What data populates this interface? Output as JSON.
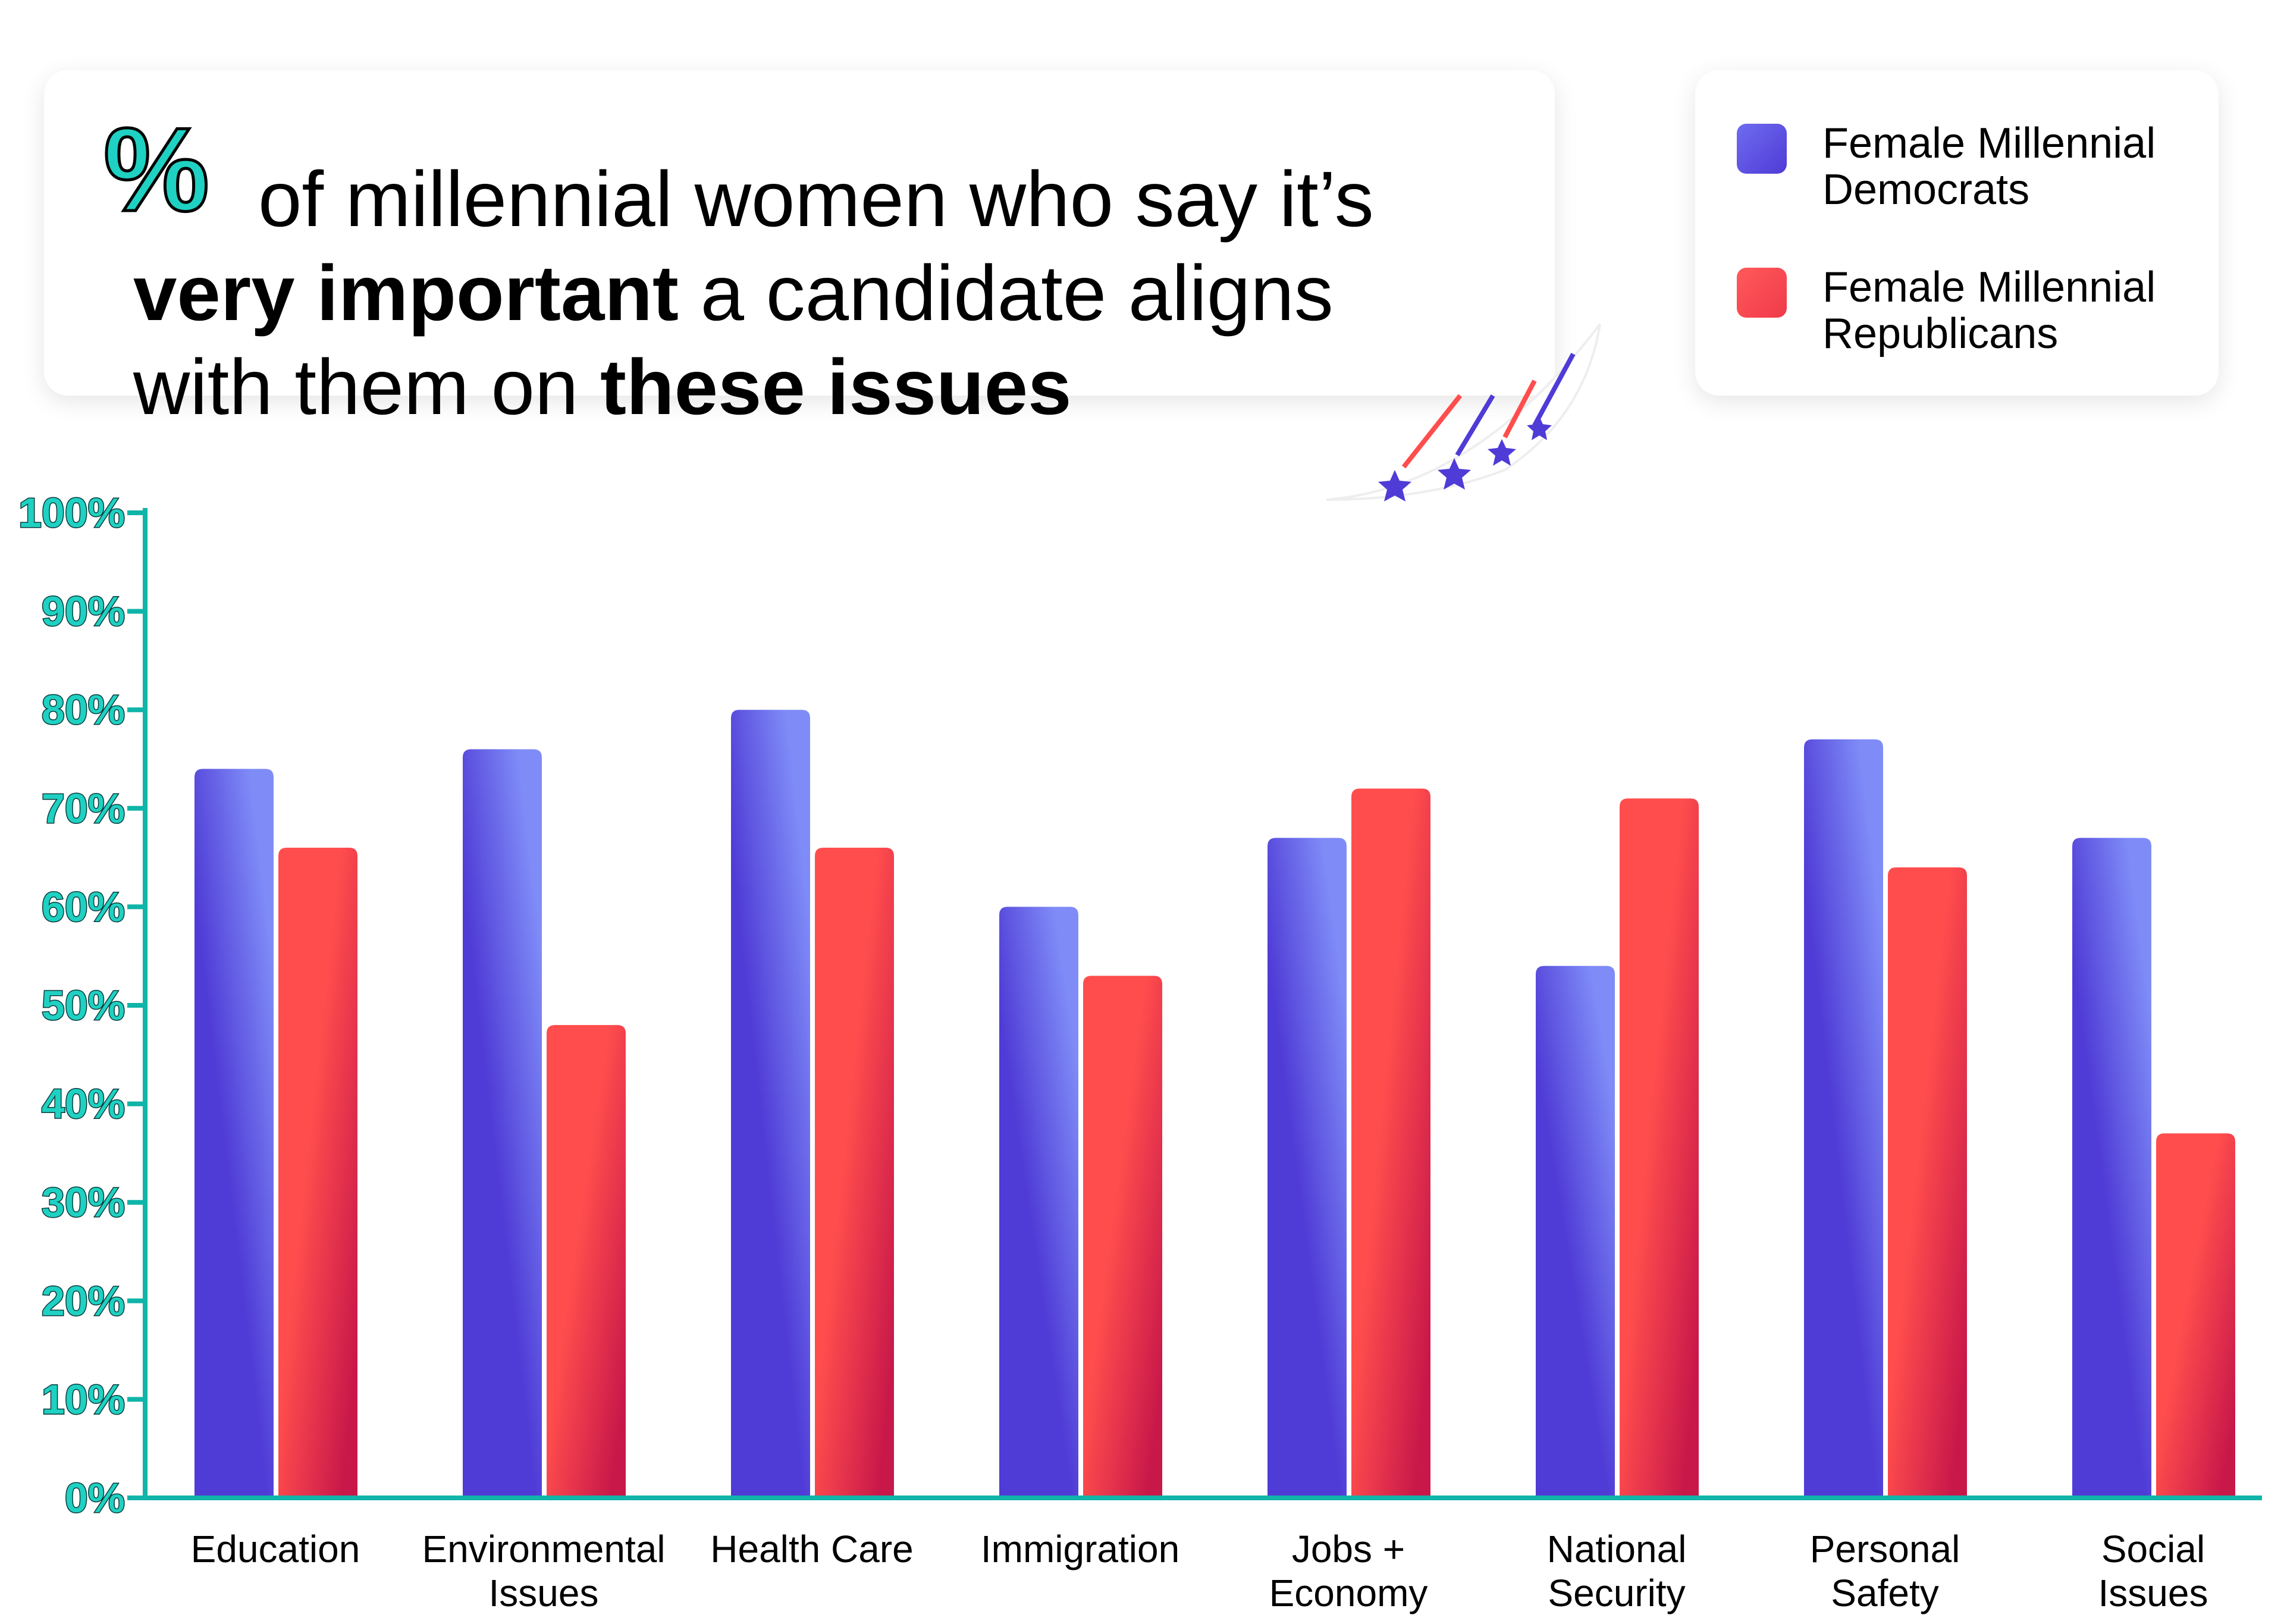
{
  "title": {
    "symbol": "%",
    "line1": "of millennial women who say it’s",
    "line2_bold": "very important",
    "line2_rest": " a candidate aligns",
    "line3_rest": "with them on ",
    "line3_bold": "these issues"
  },
  "legend": [
    {
      "label_line1": "Female Millennial",
      "label_line2": "Democrats",
      "color": "#4f3bd6"
    },
    {
      "label_line1": "Female Millennial",
      "label_line2": "Republicans",
      "color": "#ff4d4d"
    }
  ],
  "colors": {
    "axis": "#10b4a8",
    "tick_text": "#1fd1c2",
    "democrat_top": "#7f8cf7",
    "democrat": "#4f3bd6",
    "republican": "#ff4d4d",
    "republican_bottom": "#c8184a"
  },
  "chart_data": {
    "type": "bar",
    "title": "% of millennial women who say it’s very important a candidate aligns with them on these issues",
    "categories": [
      [
        "Education"
      ],
      [
        "Environmental",
        "Issues"
      ],
      [
        "Health Care"
      ],
      [
        "Immigration"
      ],
      [
        "Jobs +",
        "Economy"
      ],
      [
        "National",
        "Security"
      ],
      [
        "Personal",
        "Safety"
      ],
      [
        "Social",
        "Issues"
      ]
    ],
    "series": [
      {
        "name": "Female Millennial Democrats",
        "values": [
          74,
          76,
          80,
          60,
          67,
          54,
          77,
          67
        ]
      },
      {
        "name": "Female Millennial Republicans",
        "values": [
          66,
          48,
          66,
          53,
          72,
          71,
          64,
          37
        ]
      }
    ],
    "yticks": [
      "0%",
      "10%",
      "20%",
      "30%",
      "40%",
      "50%",
      "60%",
      "70%",
      "80%",
      "90%",
      "100%"
    ],
    "ylim": [
      0,
      100
    ],
    "xlabel": "",
    "ylabel": "",
    "grid": false,
    "legend_position": "top-right"
  }
}
